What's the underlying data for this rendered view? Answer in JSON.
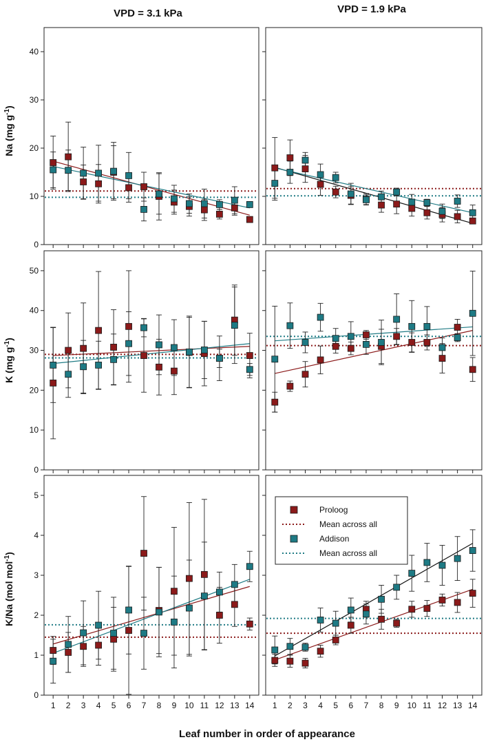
{
  "figure": {
    "columns": [
      "VPD = 3.1 kPa",
      "VPD = 1.9 kPa"
    ],
    "xlabel": "Leaf number in order of appearance",
    "row_labels": [
      {
        "main": "Na (mg g",
        "sup": "-1",
        "end": ")"
      },
      {
        "main": "K (mg g",
        "sup": "-1",
        "end": ")"
      },
      {
        "main": "K/Na (mol mol",
        "sup": "-1",
        "end": ")"
      }
    ],
    "legend": [
      {
        "label": "Proloog",
        "kind": "marker",
        "color": "#8B1A1A"
      },
      {
        "label": "Mean across all",
        "kind": "dotted",
        "color": "#8B1A1A"
      },
      {
        "label": "Addison",
        "kind": "marker",
        "color": "#1E7A84"
      },
      {
        "label": "Mean across all",
        "kind": "dotted",
        "color": "#1E7A84"
      }
    ]
  },
  "colors": {
    "proloog": "#8B1A1A",
    "addison": "#1E7A84",
    "black": "#000000"
  },
  "chart_data": [
    {
      "type": "scatter",
      "id": "na-3.1",
      "row": 0,
      "col": 0,
      "title": "VPD = 3.1 kPa",
      "ylabel": "Na (mg g-1)",
      "xlim": [
        0.4,
        14.6
      ],
      "ylim": [
        0,
        45
      ],
      "yticks": [
        0,
        10,
        20,
        30,
        40
      ],
      "x": [
        1,
        2,
        3,
        4,
        5,
        6,
        7,
        8,
        9,
        10,
        11,
        12,
        13,
        14
      ],
      "series": [
        {
          "name": "Proloog",
          "color": "#8B1A1A",
          "values": [
            17.0,
            18.2,
            13.0,
            12.6,
            15.0,
            11.8,
            12.0,
            10.0,
            8.8,
            7.9,
            7.2,
            6.3,
            7.6,
            5.2
          ],
          "err": [
            5.5,
            7.2,
            3.5,
            4.0,
            5.5,
            3.0,
            3.0,
            4.9,
            2.5,
            2.0,
            2.2,
            1.0,
            1.5,
            0
          ],
          "mean": 11.1,
          "fit": [
            17.3,
            6.1
          ],
          "fit_color": "#8B1A1A"
        },
        {
          "name": "Addison",
          "color": "#1E7A84",
          "values": [
            15.5,
            15.4,
            14.8,
            14.8,
            15.2,
            14.3,
            7.3,
            10.5,
            9.5,
            8.5,
            8.5,
            8.3,
            9.2,
            8.3
          ],
          "err": [
            3.7,
            4.2,
            5.4,
            5.8,
            6.0,
            4.8,
            2.4,
            4.2,
            2.8,
            2.0,
            3.0,
            1.0,
            2.8,
            0
          ],
          "mean": 9.8,
          "fit": [
            16.2,
            7.6
          ],
          "fit_color": "#1E7A84"
        }
      ]
    },
    {
      "type": "scatter",
      "id": "na-1.9",
      "row": 0,
      "col": 1,
      "title": "VPD = 1.9 kPa",
      "ylabel": "",
      "xlim": [
        0.4,
        14.6
      ],
      "ylim": [
        0,
        45
      ],
      "yticks": [
        0,
        10,
        20,
        30,
        40
      ],
      "x": [
        1,
        2,
        3,
        4,
        5,
        6,
        7,
        8,
        9,
        10,
        11,
        12,
        13,
        14
      ],
      "series": [
        {
          "name": "Proloog",
          "color": "#8B1A1A",
          "values": [
            15.9,
            18.0,
            15.7,
            12.5,
            10.9,
            10.2,
            9.4,
            8.2,
            8.4,
            7.5,
            6.6,
            6.2,
            5.8,
            4.9
          ],
          "err": [
            6.3,
            3.7,
            2.8,
            2.3,
            1.2,
            1.8,
            1.2,
            1.5,
            2.0,
            1.6,
            1.3,
            1.5,
            1.3,
            0
          ],
          "mean": 11.6,
          "fit": [
            16.0,
            4.4
          ],
          "fit_color": "#111111"
        },
        {
          "name": "Addison",
          "color": "#1E7A84",
          "values": [
            12.7,
            15.0,
            17.5,
            14.5,
            13.9,
            10.5,
            9.3,
            9.9,
            10.9,
            8.8,
            8.7,
            6.9,
            9.0,
            6.6
          ],
          "err": [
            3.5,
            2.3,
            1.6,
            2.2,
            1.1,
            2.2,
            1.0,
            1.2,
            0.8,
            1.6,
            0.7,
            1.5,
            1.3,
            1.6
          ],
          "mean": 10.1,
          "fit": [
            15.9,
            6.6
          ],
          "fit_color": "#1E7A84"
        }
      ]
    },
    {
      "type": "scatter",
      "id": "k-3.1",
      "row": 1,
      "col": 0,
      "title": "",
      "ylabel": "K (mg g-1)",
      "xlim": [
        0.4,
        14.6
      ],
      "ylim": [
        0,
        55
      ],
      "yticks": [
        0,
        10,
        20,
        30,
        40,
        50
      ],
      "x": [
        1,
        2,
        3,
        4,
        5,
        6,
        7,
        8,
        9,
        10,
        11,
        12,
        13,
        14
      ],
      "series": [
        {
          "name": "Proloog",
          "color": "#8B1A1A",
          "values": [
            21.8,
            30.0,
            30.5,
            35.0,
            30.8,
            36.0,
            28.7,
            25.8,
            24.8,
            29.5,
            29.2,
            28.0,
            37.6,
            28.7
          ],
          "err": [
            14.0,
            9.4,
            11.4,
            14.8,
            9.4,
            14.0,
            9.2,
            7.0,
            5.9,
            8.8,
            8.1,
            2.3,
            8.8,
            5.6
          ],
          "mean": 29.0,
          "fit": [
            28.7,
            31.0
          ],
          "fit_color": "#8B1A1A"
        },
        {
          "name": "Addison",
          "color": "#1E7A84",
          "values": [
            26.3,
            24.0,
            25.9,
            26.3,
            27.7,
            31.7,
            35.7,
            31.4,
            30.7,
            29.6,
            30.1,
            28.0,
            36.3,
            25.2
          ],
          "err": [
            9.4,
            5.8,
            6.6,
            6.0,
            6.4,
            8.0,
            2.3,
            7.5,
            7.0,
            9.0,
            7.2,
            5.6,
            9.6,
            1.5
          ],
          "mean": 28.1,
          "fit": [
            26.7,
            31.7
          ],
          "fit_color": "#1E7A84"
        }
      ]
    },
    {
      "type": "scatter",
      "id": "k-1.9",
      "row": 1,
      "col": 1,
      "title": "",
      "ylabel": "",
      "xlim": [
        0.4,
        14.6
      ],
      "ylim": [
        0,
        55
      ],
      "yticks": [
        0,
        10,
        20,
        30,
        40,
        50
      ],
      "x": [
        1,
        2,
        3,
        4,
        5,
        6,
        7,
        8,
        9,
        10,
        11,
        12,
        13,
        14
      ],
      "series": [
        {
          "name": "Proloog",
          "color": "#8B1A1A",
          "values": [
            17.0,
            21.0,
            24.0,
            27.6,
            31.0,
            30.5,
            33.9,
            31.0,
            33.5,
            32.0,
            32.0,
            28.0,
            35.8,
            25.2
          ],
          "err": [
            2.5,
            1.3,
            3.2,
            3.5,
            1.7,
            1.6,
            1.1,
            4.3,
            2.0,
            2.4,
            1.9,
            3.7,
            2.0,
            3.0
          ],
          "mean": 31.2,
          "fit": [
            24.2,
            35.0
          ],
          "fit_color": "#8B1A1A"
        },
        {
          "name": "Addison",
          "color": "#1E7A84",
          "values": [
            27.8,
            36.2,
            32.0,
            38.3,
            33.0,
            33.5,
            31.5,
            32.0,
            37.8,
            36.0,
            36.0,
            30.7,
            33.2,
            39.3
          ],
          "err": [
            13.3,
            5.7,
            2.6,
            3.5,
            2.5,
            3.7,
            2.5,
            5.6,
            6.4,
            6.5,
            5.0,
            2.4,
            1.0,
            10.6
          ],
          "mean": 33.5,
          "fit": [
            32.4,
            35.9
          ],
          "fit_color": "#1E7A84"
        }
      ]
    },
    {
      "type": "scatter",
      "id": "kna-3.1",
      "row": 2,
      "col": 0,
      "title": "",
      "ylabel": "K/Na (mol mol-1)",
      "xlim": [
        0.4,
        14.6
      ],
      "ylim": [
        0,
        5.5
      ],
      "yticks": [
        0,
        1,
        2,
        3,
        4,
        5
      ],
      "x": [
        1,
        2,
        3,
        4,
        5,
        6,
        7,
        8,
        9,
        10,
        11,
        12,
        13,
        14
      ],
      "series": [
        {
          "name": "Proloog",
          "color": "#8B1A1A",
          "values": [
            1.12,
            1.07,
            1.22,
            1.25,
            1.4,
            1.62,
            3.55,
            2.12,
            2.6,
            2.92,
            3.02,
            2.0,
            2.27,
            1.78
          ],
          "err": [
            0.35,
            0.5,
            0.5,
            0.5,
            0.8,
            1.6,
            1.42,
            1.08,
            1.6,
            1.9,
            1.88,
            0.7,
            0.55,
            0.15
          ],
          "mean": 1.45,
          "fit": [
            1.28,
            2.72
          ],
          "fit_color": "#8B1A1A"
        },
        {
          "name": "Addison",
          "color": "#1E7A84",
          "values": [
            0.85,
            1.27,
            1.56,
            1.75,
            1.55,
            2.13,
            1.55,
            2.08,
            1.83,
            2.18,
            2.48,
            2.58,
            2.77,
            3.22
          ],
          "err": [
            0.55,
            0.7,
            0.8,
            0.85,
            0.9,
            1.1,
            0.9,
            1.12,
            1.15,
            1.2,
            1.35,
            0.5,
            0.5,
            0.38
          ],
          "mean": 1.76,
          "fit": [
            1.05,
            2.9
          ],
          "fit_color": "#1E7A84"
        }
      ]
    },
    {
      "type": "scatter",
      "id": "kna-1.9",
      "row": 2,
      "col": 1,
      "title": "",
      "ylabel": "",
      "xlim": [
        0.4,
        14.6
      ],
      "ylim": [
        0,
        5.5
      ],
      "yticks": [
        0,
        1,
        2,
        3,
        4,
        5
      ],
      "x": [
        1,
        2,
        3,
        4,
        5,
        6,
        7,
        8,
        9,
        10,
        11,
        12,
        13,
        14
      ],
      "series": [
        {
          "name": "Proloog",
          "color": "#8B1A1A",
          "values": [
            0.87,
            0.85,
            0.8,
            1.1,
            1.38,
            1.75,
            2.15,
            1.9,
            1.8,
            2.15,
            2.17,
            2.38,
            2.32,
            2.55
          ],
          "err": [
            0.15,
            0.15,
            0.12,
            0.15,
            0.12,
            0.2,
            0.2,
            0.25,
            0.1,
            0.2,
            0.2,
            0.15,
            0.25,
            0.35
          ],
          "mean": 1.55,
          "fit": [
            0.88,
            2.65
          ],
          "fit_color": "#8B1A1A"
        },
        {
          "name": "Addison",
          "color": "#1E7A84",
          "values": [
            1.13,
            1.22,
            1.2,
            1.88,
            1.8,
            2.13,
            2.03,
            2.4,
            2.7,
            3.05,
            3.32,
            3.25,
            3.42,
            3.62
          ],
          "err": [
            0.35,
            0.2,
            0.1,
            0.3,
            0.3,
            0.3,
            0.25,
            0.35,
            0.3,
            0.45,
            0.48,
            0.5,
            0.55,
            0.52
          ],
          "mean": 1.92,
          "fit": [
            0.98,
            3.8
          ],
          "fit_color": "#111111"
        }
      ]
    }
  ]
}
